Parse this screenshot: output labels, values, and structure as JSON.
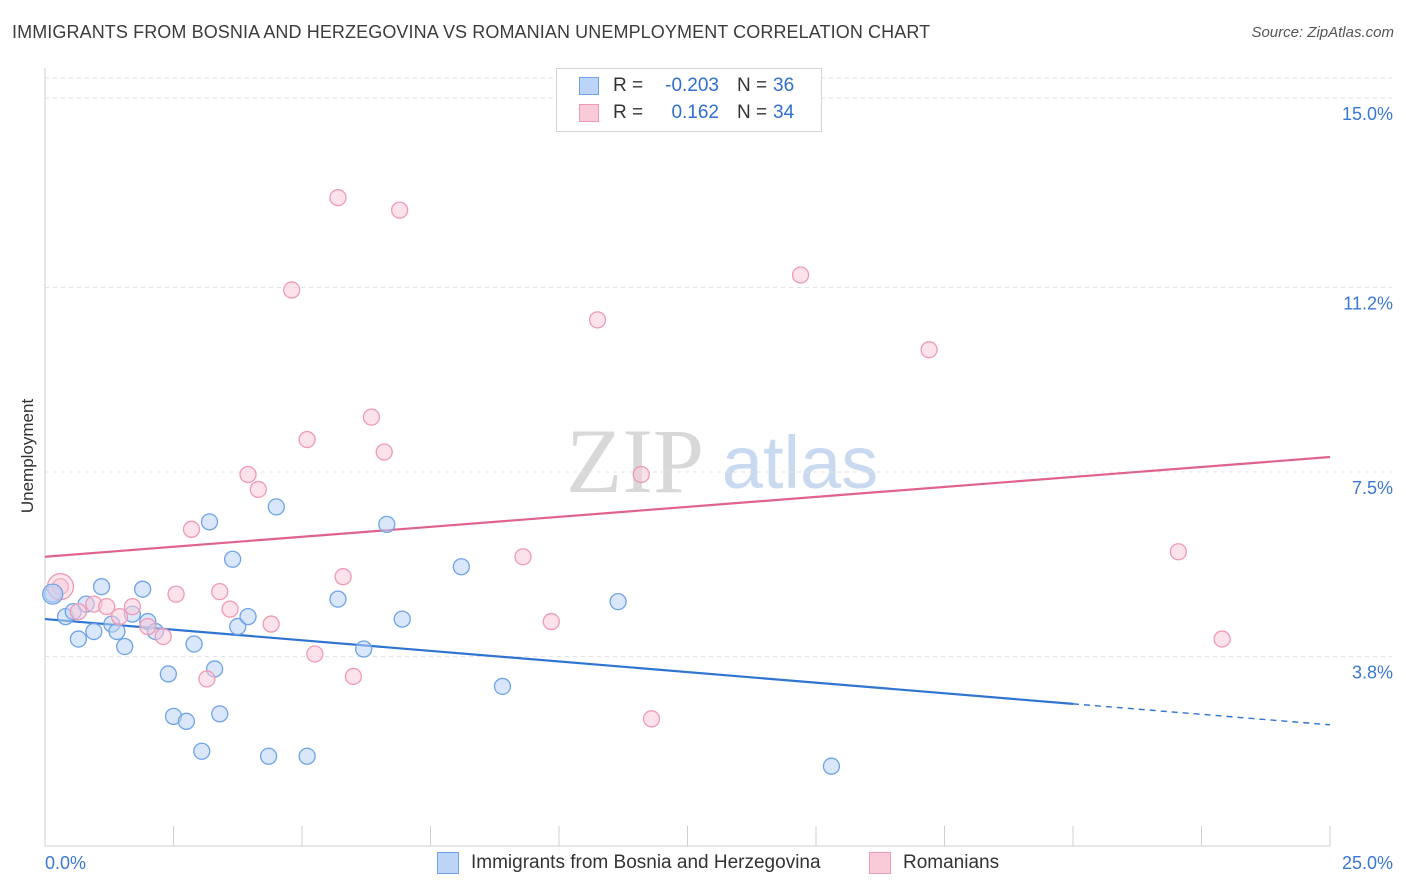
{
  "title": "IMMIGRANTS FROM BOSNIA AND HERZEGOVINA VS ROMANIAN UNEMPLOYMENT CORRELATION CHART",
  "source": "Source: ZipAtlas.com",
  "watermark": {
    "zip": "ZIP",
    "atlas": "atlas"
  },
  "legend": {
    "r_label": "R =",
    "n_label": "N =",
    "rows": [
      {
        "r": "-0.203",
        "n": "36",
        "color": "#6fa3e6",
        "fill": "#bcd4f5"
      },
      {
        "r": "0.162",
        "n": "34",
        "color": "#ef9ab5",
        "fill": "#f9cad8"
      }
    ]
  },
  "chart_data": {
    "type": "scatter",
    "title": "IMMIGRANTS FROM BOSNIA AND HERZEGOVINA VS ROMANIAN UNEMPLOYMENT CORRELATION CHART",
    "xlabel": "",
    "ylabel": "Unemployment",
    "xlim": [
      0,
      25
    ],
    "ylim": [
      0,
      15.4
    ],
    "x_tick_labels": [
      "0.0%",
      "25.0%"
    ],
    "y_ticks": [
      {
        "value": 3.8,
        "label": "3.8%"
      },
      {
        "value": 7.5,
        "label": "7.5%"
      },
      {
        "value": 11.2,
        "label": "11.2%"
      },
      {
        "value": 15.0,
        "label": "15.0%"
      }
    ],
    "series": [
      {
        "name": "Immigrants from Bosnia and Herzegovina",
        "color": "#6fa3e6",
        "fill": "#bcd4f5",
        "line_color": "#2f74d0",
        "trend": {
          "x0": 0,
          "y0": 4.55,
          "x1": 20,
          "y1": 2.85,
          "x_dash_end": 25,
          "y_dash_end": 2.43
        },
        "points": [
          [
            0.15,
            5.05
          ],
          [
            0.4,
            4.6
          ],
          [
            0.55,
            4.7
          ],
          [
            0.65,
            4.15
          ],
          [
            0.8,
            4.85
          ],
          [
            0.95,
            4.3
          ],
          [
            1.1,
            5.2
          ],
          [
            1.3,
            4.45
          ],
          [
            1.4,
            4.3
          ],
          [
            1.55,
            4.0
          ],
          [
            1.7,
            4.65
          ],
          [
            1.9,
            5.15
          ],
          [
            2.0,
            4.5
          ],
          [
            2.15,
            4.3
          ],
          [
            2.4,
            3.45
          ],
          [
            2.5,
            2.6
          ],
          [
            2.75,
            2.5
          ],
          [
            2.9,
            4.05
          ],
          [
            3.05,
            1.9
          ],
          [
            3.2,
            6.5
          ],
          [
            3.3,
            3.55
          ],
          [
            3.4,
            2.65
          ],
          [
            3.65,
            5.75
          ],
          [
            3.75,
            4.4
          ],
          [
            3.95,
            4.6
          ],
          [
            4.35,
            1.8
          ],
          [
            4.5,
            6.8
          ],
          [
            5.1,
            1.8
          ],
          [
            5.7,
            4.95
          ],
          [
            6.2,
            3.95
          ],
          [
            6.65,
            6.45
          ],
          [
            6.95,
            4.55
          ],
          [
            8.1,
            5.6
          ],
          [
            8.9,
            3.2
          ],
          [
            11.15,
            4.9
          ],
          [
            15.3,
            1.6
          ]
        ]
      },
      {
        "name": "Romanians",
        "color": "#ef9ab5",
        "fill": "#f9cad8",
        "line_color": "#e0628f",
        "trend": {
          "x0": 0,
          "y0": 5.8,
          "x1": 25,
          "y1": 7.8
        },
        "points": [
          [
            0.3,
            5.2
          ],
          [
            0.65,
            4.7
          ],
          [
            0.95,
            4.85
          ],
          [
            1.2,
            4.8
          ],
          [
            1.45,
            4.6
          ],
          [
            1.7,
            4.8
          ],
          [
            2.0,
            4.4
          ],
          [
            2.3,
            4.2
          ],
          [
            2.55,
            5.05
          ],
          [
            2.85,
            6.35
          ],
          [
            3.15,
            3.35
          ],
          [
            3.4,
            5.1
          ],
          [
            3.6,
            4.75
          ],
          [
            3.95,
            7.45
          ],
          [
            4.15,
            7.15
          ],
          [
            4.4,
            4.45
          ],
          [
            4.8,
            11.15
          ],
          [
            5.1,
            8.15
          ],
          [
            5.25,
            3.85
          ],
          [
            5.7,
            13.0
          ],
          [
            5.8,
            5.4
          ],
          [
            6.0,
            3.4
          ],
          [
            6.35,
            8.6
          ],
          [
            6.6,
            7.9
          ],
          [
            6.9,
            12.75
          ],
          [
            9.3,
            5.8
          ],
          [
            9.85,
            4.5
          ],
          [
            10.75,
            10.55
          ],
          [
            11.6,
            7.45
          ],
          [
            11.8,
            2.55
          ],
          [
            14.7,
            11.45
          ],
          [
            17.2,
            9.95
          ],
          [
            22.05,
            5.9
          ],
          [
            22.9,
            4.15
          ]
        ]
      }
    ]
  }
}
